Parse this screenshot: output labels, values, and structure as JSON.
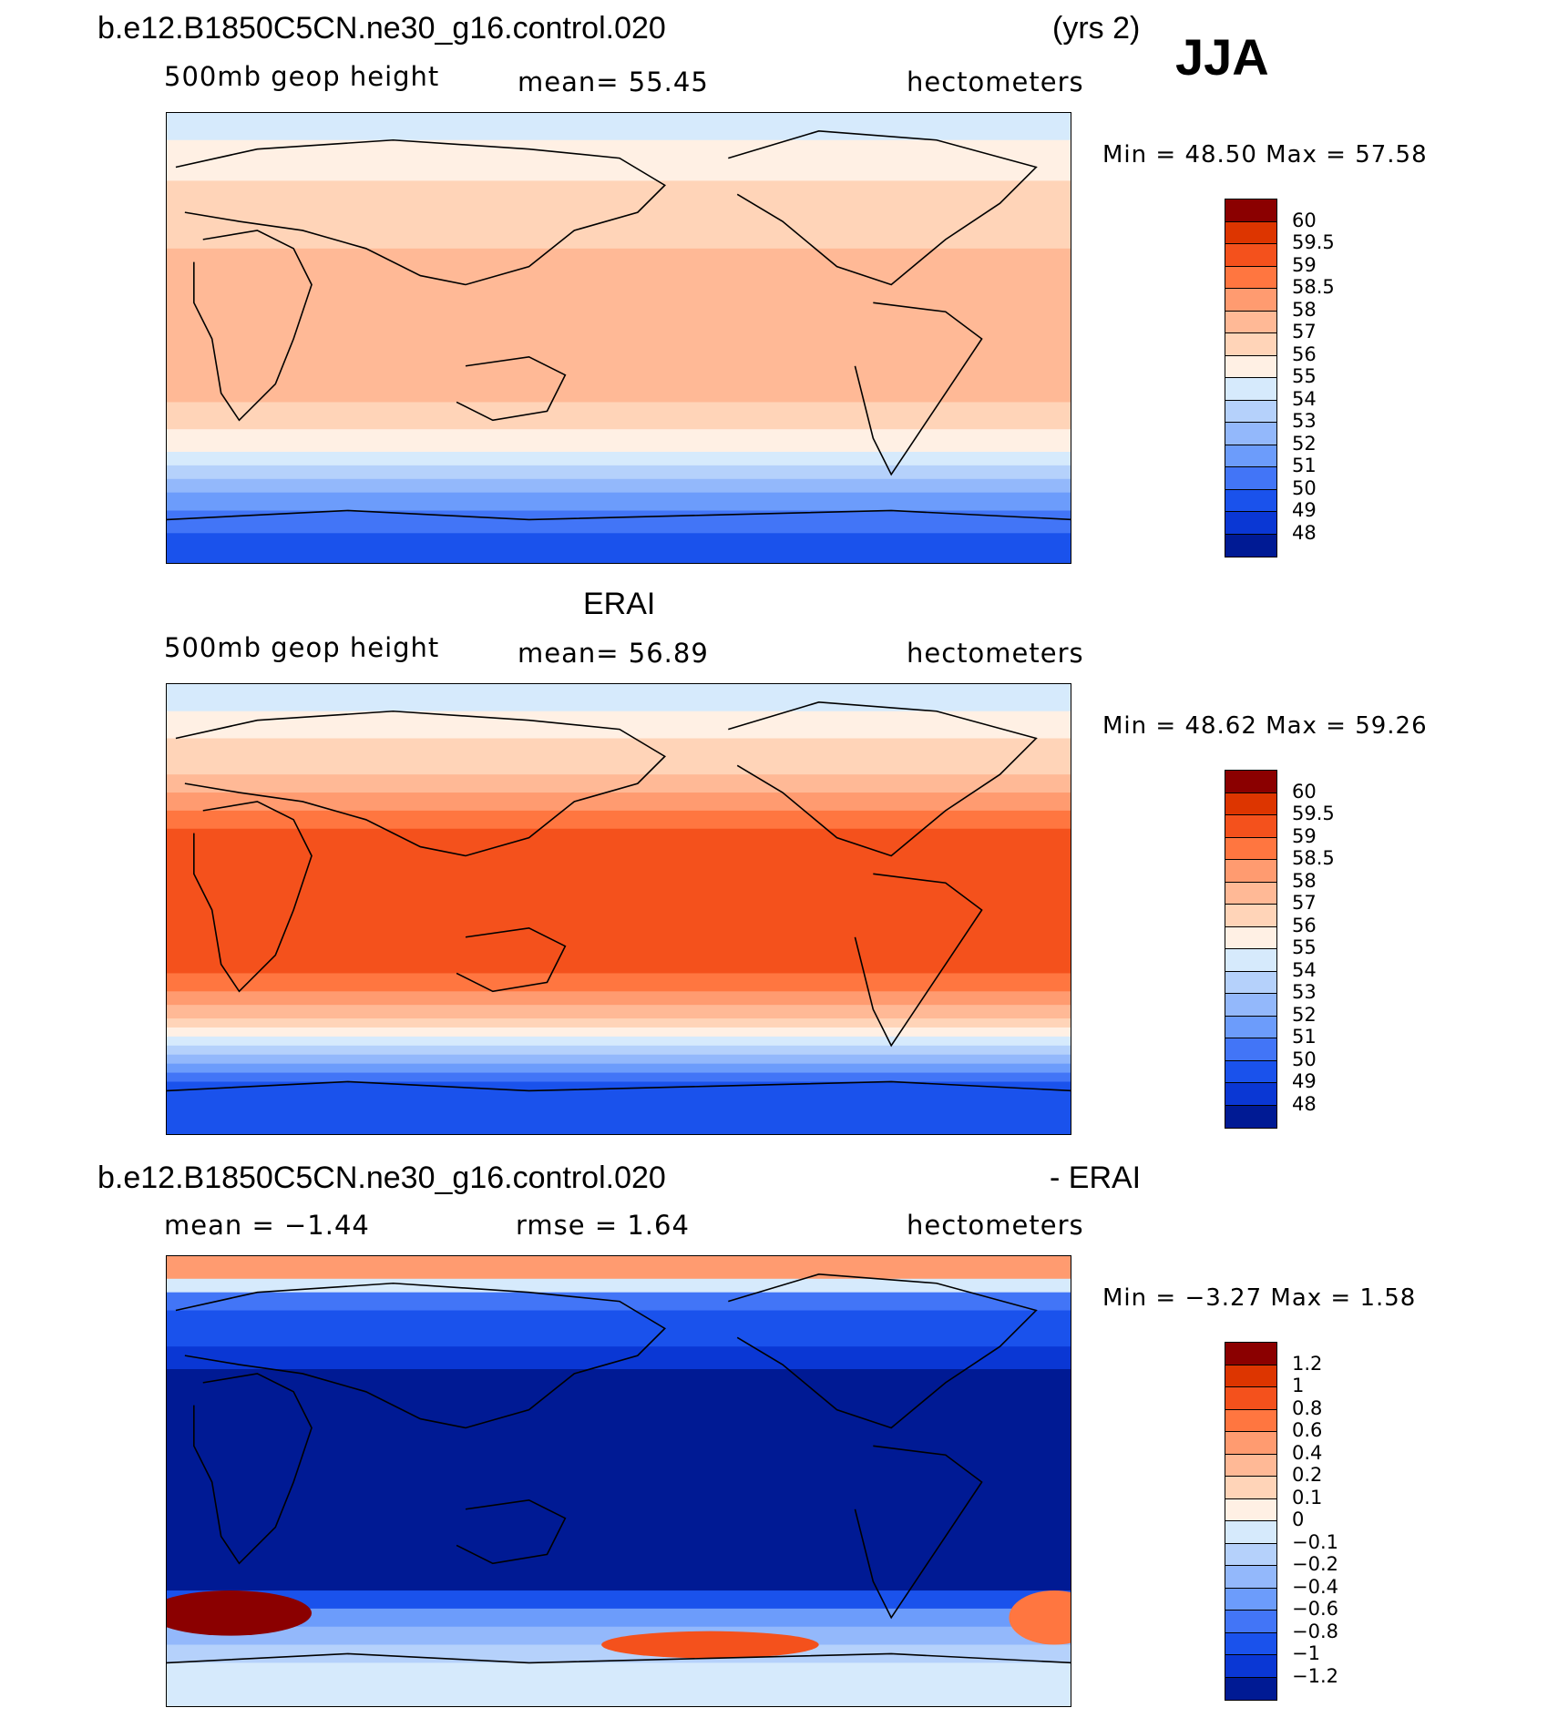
{
  "season": "JJA",
  "panel1": {
    "case": "b.e12.B1850C5CN.ne30_g16.control.020",
    "yrs": "(yrs 2)",
    "variable": "500mb geop height",
    "mean_text": "mean=  55.45",
    "units": "hectometers",
    "minmax_text": "Min =   48.50  Max =   57.58"
  },
  "panel2": {
    "case": "ERAI",
    "variable": "500mb geop height",
    "mean_text": "mean=  56.89",
    "units": "hectometers",
    "minmax_text": "Min =   48.62  Max =   59.26"
  },
  "panel3": {
    "case": "b.e12.B1850C5CN.ne30_g16.control.020",
    "minus": "- ERAI",
    "mean_text": "mean =  −1.44",
    "rmse_text": "rmse =   1.64",
    "units": "hectometers",
    "minmax_text": "Min =  −3.27  Max =   1.58"
  },
  "chart_data": [
    {
      "type": "heatmap",
      "title": "500mb geop height",
      "units": "hectometers",
      "mean": 55.45,
      "min": 48.5,
      "max": 57.58,
      "levels": [
        "60",
        "59.5",
        "59",
        "58.5",
        "58",
        "57",
        "56",
        "55",
        "54",
        "53",
        "52",
        "51",
        "50",
        "49",
        "48"
      ],
      "band_colors": [
        "#8b0000",
        "#b81c00",
        "#dd3500",
        "#f4511c",
        "#ff7640",
        "#ff9b70",
        "#ffb996",
        "#ffd4b8",
        "#fff0e4",
        "#d6eafc",
        "#b5d1fb",
        "#93b8fb",
        "#6c9cfb",
        "#4275f7",
        "#1a52ec",
        "#0a37d4",
        "#001a94"
      ],
      "zonal_bands": [
        [
          0.0,
          9
        ],
        [
          0.06,
          8
        ],
        [
          0.15,
          7
        ],
        [
          0.3,
          6
        ],
        [
          0.4,
          6
        ],
        [
          0.5,
          6
        ],
        [
          0.64,
          7
        ],
        [
          0.7,
          8
        ],
        [
          0.75,
          9
        ],
        [
          0.78,
          10
        ],
        [
          0.81,
          11
        ],
        [
          0.84,
          12
        ],
        [
          0.88,
          13
        ],
        [
          0.93,
          14
        ],
        [
          1.0,
          14
        ]
      ]
    },
    {
      "type": "heatmap",
      "title": "500mb geop height",
      "units": "hectometers",
      "mean": 56.89,
      "min": 48.62,
      "max": 59.26,
      "levels": [
        "60",
        "59.5",
        "59",
        "58.5",
        "58",
        "57",
        "56",
        "55",
        "54",
        "53",
        "52",
        "51",
        "50",
        "49",
        "48"
      ],
      "band_colors": [
        "#8b0000",
        "#b81c00",
        "#dd3500",
        "#f4511c",
        "#ff7640",
        "#ff9b70",
        "#ffb996",
        "#ffd4b8",
        "#fff0e4",
        "#d6eafc",
        "#b5d1fb",
        "#93b8fb",
        "#6c9cfb",
        "#4275f7",
        "#1a52ec",
        "#0a37d4",
        "#001a94"
      ],
      "zonal_bands": [
        [
          0.0,
          9
        ],
        [
          0.06,
          8
        ],
        [
          0.12,
          7
        ],
        [
          0.2,
          6
        ],
        [
          0.24,
          5
        ],
        [
          0.28,
          4
        ],
        [
          0.32,
          3
        ],
        [
          0.6,
          3
        ],
        [
          0.64,
          4
        ],
        [
          0.68,
          5
        ],
        [
          0.71,
          6
        ],
        [
          0.74,
          7
        ],
        [
          0.76,
          8
        ],
        [
          0.78,
          9
        ],
        [
          0.8,
          10
        ],
        [
          0.82,
          11
        ],
        [
          0.84,
          12
        ],
        [
          0.86,
          13
        ],
        [
          0.88,
          14
        ],
        [
          1.0,
          14
        ]
      ]
    },
    {
      "type": "heatmap",
      "title": "b.e12.B1850C5CN.ne30_g16.control.020 - ERAI",
      "units": "hectometers",
      "mean": -1.44,
      "rmse": 1.64,
      "min": -3.27,
      "max": 1.58,
      "levels": [
        "1.2",
        "1",
        "0.8",
        "0.6",
        "0.4",
        "0.2",
        "0.1",
        "0",
        "−0.1",
        "−0.2",
        "−0.4",
        "−0.6",
        "−0.8",
        "−1",
        "−1.2"
      ],
      "band_colors": [
        "#8b0000",
        "#b81c00",
        "#dd3500",
        "#f4511c",
        "#ff7640",
        "#ff9b70",
        "#ffb996",
        "#ffd4b8",
        "#fff0e4",
        "#d6eafc",
        "#b5d1fb",
        "#93b8fb",
        "#6c9cfb",
        "#4275f7",
        "#1a52ec",
        "#0a37d4",
        "#001a94"
      ],
      "zonal_bands": [
        [
          0.0,
          5
        ],
        [
          0.05,
          9
        ],
        [
          0.08,
          13
        ],
        [
          0.12,
          14
        ],
        [
          0.2,
          15
        ],
        [
          0.25,
          16
        ],
        [
          0.7,
          16
        ],
        [
          0.74,
          14
        ],
        [
          0.78,
          12
        ],
        [
          0.82,
          11
        ],
        [
          0.86,
          10
        ],
        [
          0.9,
          9
        ],
        [
          1.0,
          9
        ]
      ]
    }
  ]
}
